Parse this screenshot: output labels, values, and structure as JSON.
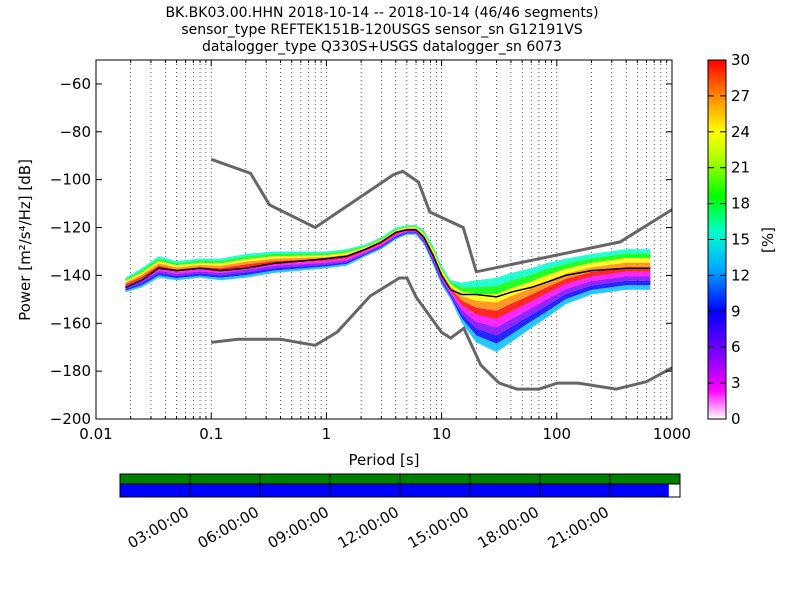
{
  "chart_data": {
    "type": "heatmap",
    "title_lines": [
      "BK.BK03.00.HHN   2018-10-14 -- 2018-10-14  (46/46 segments)",
      "sensor_type REFTEK151B-120USGS sensor_sn G12191VS",
      "datalogger_type Q330S+USGS datalogger_sn 6073"
    ],
    "xlabel": "Period [s]",
    "ylabel": "Power [m²/s⁴/Hz] [dB]",
    "x_scale": "log",
    "xlim": [
      0.01,
      1000
    ],
    "ylim": [
      -200,
      -50
    ],
    "x_ticks": [
      {
        "value": 0.01,
        "label": "0.01"
      },
      {
        "value": 0.1,
        "label": "0.1"
      },
      {
        "value": 1,
        "label": "1"
      },
      {
        "value": 10,
        "label": "10"
      },
      {
        "value": 100,
        "label": "100"
      },
      {
        "value": 1000,
        "label": "1000"
      }
    ],
    "y_ticks": [
      {
        "value": -60,
        "label": "−60"
      },
      {
        "value": -80,
        "label": "−80"
      },
      {
        "value": -100,
        "label": "−100"
      },
      {
        "value": -120,
        "label": "−120"
      },
      {
        "value": -140,
        "label": "−140"
      },
      {
        "value": -160,
        "label": "−160"
      },
      {
        "value": -180,
        "label": "−180"
      },
      {
        "value": -200,
        "label": "−200"
      }
    ],
    "grid": "dotted vertical at log-period minor ticks",
    "colorbar": {
      "label": "[%]",
      "range": [
        0,
        30
      ],
      "ticks": [
        "0",
        "3",
        "6",
        "9",
        "12",
        "15",
        "18",
        "21",
        "24",
        "27",
        "30"
      ],
      "colors": [
        "#ffffff",
        "#a020f0",
        "#0000ff",
        "#00bfff",
        "#00ff88",
        "#00ff00",
        "#ffff00",
        "#ff9900",
        "#ff0000"
      ]
    },
    "series": [
      {
        "name": "NHNM",
        "color": "#666666",
        "x": [
          0.1,
          0.22,
          0.32,
          0.8,
          3.8,
          4.6,
          6.3,
          7.9,
          15.4,
          20,
          354.8,
          1000
        ],
        "y": [
          -91.5,
          -97.4,
          -110.5,
          -120,
          -98,
          -96.5,
          -101,
          -113.5,
          -120,
          -138.5,
          -126,
          -112.5
        ]
      },
      {
        "name": "NLNM",
        "color": "#666666",
        "x": [
          0.1,
          0.17,
          0.4,
          0.8,
          1.24,
          2.4,
          4.3,
          5.0,
          6.0,
          10.0,
          12.0,
          15.6,
          21.9,
          31.6,
          45.0,
          70.0,
          101.0,
          154.0,
          328.0,
          600.0,
          1000.0
        ],
        "y": [
          -168,
          -166.7,
          -166.7,
          -169.2,
          -163.7,
          -148.6,
          -141.1,
          -141.1,
          -149.0,
          -163.8,
          -166.2,
          -162.1,
          -177.5,
          -185.0,
          -187.5,
          -187.5,
          -185.0,
          -185.0,
          -187.5,
          -184.4,
          -178.6
        ]
      },
      {
        "name": "mode",
        "color": "#000000",
        "x": [
          0.018,
          0.025,
          0.035,
          0.05,
          0.08,
          0.12,
          0.2,
          0.35,
          0.6,
          1.0,
          1.5,
          2.2,
          3.0,
          4.0,
          5.0,
          6.0,
          7.0,
          8.5,
          10.0,
          12.0,
          15.0,
          20.0,
          30.0,
          40.0,
          60.0,
          80.0,
          120.0,
          200.0,
          400.0,
          650.0
        ],
        "y": [
          -145,
          -142,
          -137,
          -138,
          -137,
          -138,
          -137,
          -135,
          -134,
          -133,
          -132,
          -129,
          -126,
          -122,
          -121,
          -121,
          -124,
          -132,
          -140,
          -146,
          -148,
          -148,
          -149,
          -147,
          -145,
          -143,
          -140,
          -138,
          -137,
          -137
        ]
      }
    ],
    "psd_band": {
      "x": [
        0.018,
        0.025,
        0.035,
        0.05,
        0.08,
        0.12,
        0.2,
        0.35,
        0.6,
        1.0,
        1.5,
        2.2,
        3.0,
        4.0,
        5.0,
        6.0,
        7.0,
        8.5,
        10.0,
        12.0,
        15.0,
        20.0,
        30.0,
        40.0,
        60.0,
        80.0,
        120.0,
        200.0,
        400.0,
        650.0
      ],
      "upper": [
        -141,
        -137,
        -132,
        -134,
        -133,
        -133,
        -131,
        -130,
        -130,
        -130,
        -129,
        -127,
        -124,
        -120,
        -119,
        -119,
        -121,
        -128,
        -136,
        -142,
        -143,
        -142,
        -141,
        -139,
        -137,
        -135,
        -133,
        -131,
        -129,
        -129
      ],
      "lower": [
        -147,
        -145,
        -141,
        -142,
        -141,
        -142,
        -141,
        -139,
        -138,
        -137,
        -136,
        -132,
        -129,
        -125,
        -123,
        -123,
        -127,
        -136,
        -144,
        -150,
        -160,
        -168,
        -172,
        -168,
        -162,
        -158,
        -152,
        -148,
        -146,
        -146
      ]
    },
    "time_axis": {
      "labels": [
        "03:00:00",
        "06:00:00",
        "09:00:00",
        "12:00:00",
        "15:00:00",
        "18:00:00",
        "21:00:00"
      ],
      "hours_total": 24,
      "coverage_fraction": 0.98,
      "data_color": "#0000ff",
      "gaps_color": "#008000"
    }
  }
}
